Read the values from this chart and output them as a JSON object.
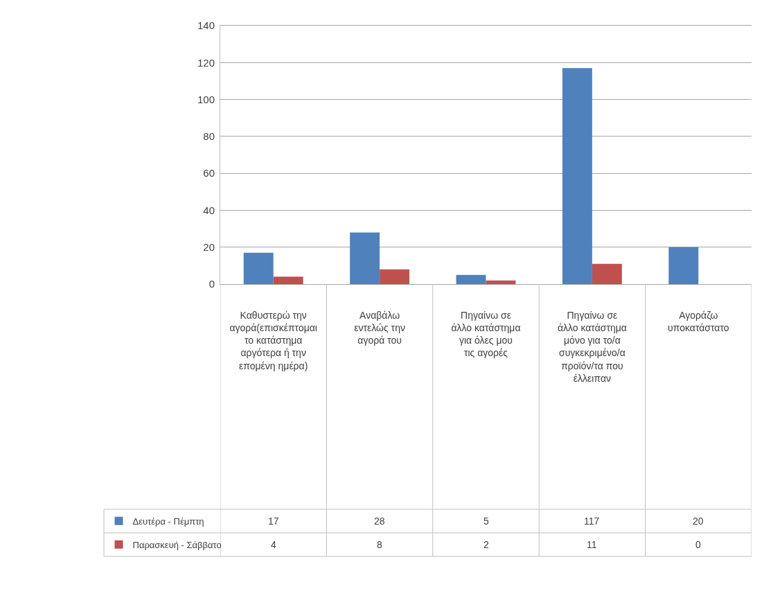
{
  "chart_data": {
    "type": "bar",
    "categories": [
      "Καθυστερώ την αγορά(επισκέπτομαι το κατάστημα αργότερα ή την επομένη ημέρα)",
      "Αναβάλω εντελώς την αγορά του",
      "Πηγαίνω σε άλλο κατάστημα για όλες μου τις αγορές",
      "Πηγαίνω σε άλλο κατάστημα μόνο για το/α συγκεκριμένο/α προϊόν/τα που έλλειπαν",
      "Αγοράζω υποκατάστατο"
    ],
    "series": [
      {
        "name": "Δευτέρα - Πέμπτη",
        "color": "#4f81bd",
        "values": [
          17,
          28,
          5,
          117,
          20
        ]
      },
      {
        "name": "Παρασκευή - Σάββατο",
        "color": "#c0504d",
        "values": [
          4,
          8,
          2,
          11,
          0
        ]
      }
    ],
    "ylim": [
      0,
      140
    ],
    "yticks": [
      0,
      20,
      40,
      60,
      80,
      100,
      120,
      140
    ],
    "grid": "y",
    "legend": "bottom left",
    "data_labels": true
  }
}
